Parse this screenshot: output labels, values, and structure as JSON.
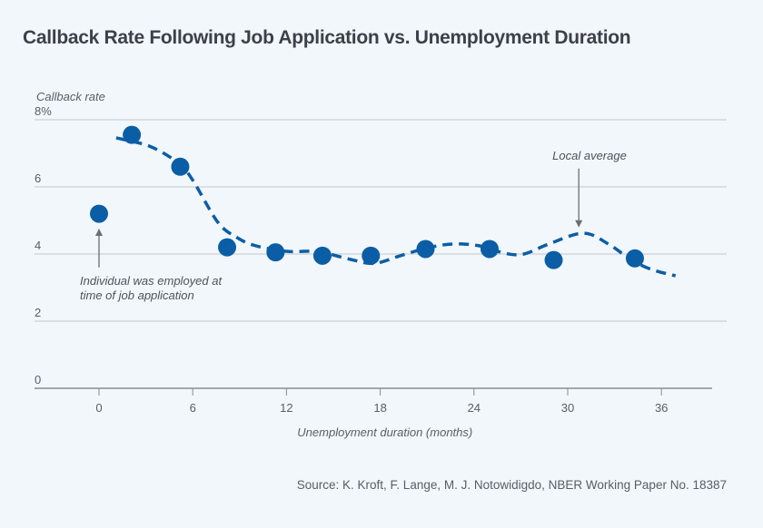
{
  "chart_data": {
    "type": "scatter",
    "title": "Callback Rate Following Job Application vs. Unemployment Duration",
    "xlabel": "Unemployment duration (months)",
    "ylabel": "Callback rate",
    "xlim": [
      -4,
      40
    ],
    "ylim": [
      0,
      8
    ],
    "grid": true,
    "x_ticks": [
      0,
      6,
      12,
      18,
      24,
      30,
      36
    ],
    "x_tick_labels": [
      "0",
      "6",
      "12",
      "18",
      "24",
      "30",
      "36"
    ],
    "y_ticks": [
      0,
      2,
      4,
      6,
      8
    ],
    "y_tick_labels": [
      "0",
      "2",
      "4",
      "6",
      "8%"
    ],
    "series": [
      {
        "name": "Callback rate",
        "type": "scatter",
        "color": "#0b5ea5",
        "points": [
          {
            "x": 0.0,
            "y": 5.2
          },
          {
            "x": 2.1,
            "y": 7.55
          },
          {
            "x": 5.2,
            "y": 6.6
          },
          {
            "x": 8.2,
            "y": 4.2
          },
          {
            "x": 11.3,
            "y": 4.05
          },
          {
            "x": 14.3,
            "y": 3.95
          },
          {
            "x": 17.4,
            "y": 3.95
          },
          {
            "x": 20.9,
            "y": 4.15
          },
          {
            "x": 25.0,
            "y": 4.15
          },
          {
            "x": 29.1,
            "y": 3.82
          },
          {
            "x": 34.3,
            "y": 3.87
          }
        ]
      },
      {
        "name": "Local average",
        "type": "line",
        "style": "dashed",
        "color": "#0b5ea5",
        "points": [
          {
            "x": 1.1,
            "y": 7.46
          },
          {
            "x": 3.3,
            "y": 7.2
          },
          {
            "x": 5.1,
            "y": 6.7
          },
          {
            "x": 6.0,
            "y": 6.2
          },
          {
            "x": 7.6,
            "y": 4.95
          },
          {
            "x": 8.8,
            "y": 4.5
          },
          {
            "x": 10.0,
            "y": 4.25
          },
          {
            "x": 12.0,
            "y": 4.08
          },
          {
            "x": 14.0,
            "y": 4.07
          },
          {
            "x": 16.0,
            "y": 3.85
          },
          {
            "x": 17.6,
            "y": 3.72
          },
          {
            "x": 19.3,
            "y": 3.95
          },
          {
            "x": 21.0,
            "y": 4.18
          },
          {
            "x": 22.7,
            "y": 4.3
          },
          {
            "x": 24.4,
            "y": 4.24
          },
          {
            "x": 26.0,
            "y": 4.02
          },
          {
            "x": 27.2,
            "y": 4.0
          },
          {
            "x": 28.8,
            "y": 4.3
          },
          {
            "x": 31.0,
            "y": 4.62
          },
          {
            "x": 32.6,
            "y": 4.3
          },
          {
            "x": 34.0,
            "y": 3.85
          },
          {
            "x": 35.3,
            "y": 3.55
          },
          {
            "x": 36.9,
            "y": 3.35
          }
        ]
      }
    ],
    "annotations": [
      {
        "text_lines": [
          "Individual was employed at",
          "time of job application"
        ],
        "arrow_from": {
          "x": 0,
          "y": 3.6
        },
        "arrow_to": {
          "x": 0,
          "y": 4.65
        }
      },
      {
        "text_lines": [
          "Local average"
        ],
        "arrow_from": {
          "x": 31.0,
          "y": 6.6
        },
        "arrow_to": {
          "x": 31.0,
          "y": 4.9
        }
      }
    ],
    "source": "Source: K. Kroft, F. Lange, M. J. Notowidigdo, NBER Working Paper No. 18387"
  }
}
